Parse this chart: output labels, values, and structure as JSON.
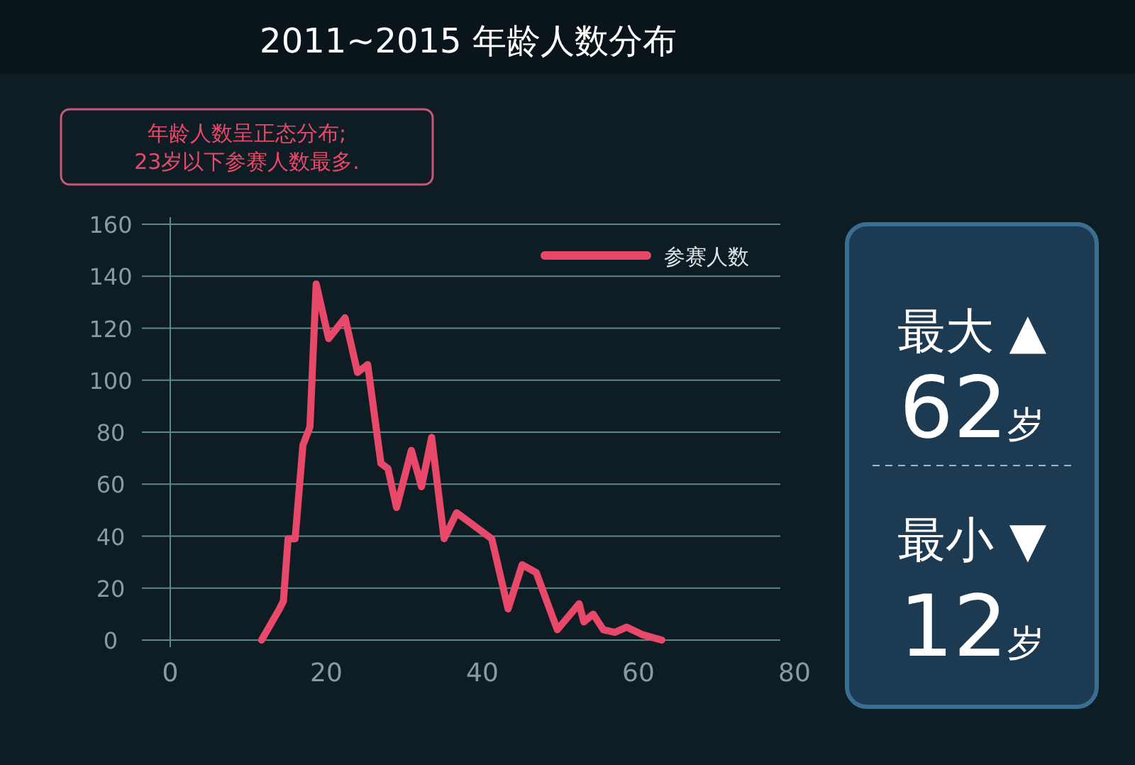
{
  "chart_data": [
    {
      "type": "line",
      "title": "2011~2015 年龄人数分布",
      "annotations": [
        "年龄人数呈正态分布;\n23岁以下参赛人数最多."
      ],
      "x": [
        11.7,
        14,
        14.5,
        15.1,
        16,
        17,
        17.9,
        18.7,
        20.3,
        22.4,
        24,
        25.3,
        27,
        27.9,
        29,
        30.9,
        32.2,
        33.5,
        35.1,
        36.7,
        41.2,
        43.3,
        45.1,
        46.9,
        49.6,
        52.4,
        53,
        54.2,
        55.5,
        57,
        58.5,
        60.6,
        63
      ],
      "series": [
        {
          "name": "参赛人数",
          "color": "#e8496a",
          "values": [
            0,
            12,
            15,
            39,
            39,
            75,
            82,
            137,
            116,
            124,
            103,
            106,
            68,
            66,
            51,
            73,
            59,
            78,
            39,
            49,
            39,
            12,
            29,
            26,
            4,
            14,
            7,
            10,
            4,
            3,
            5,
            2,
            0
          ]
        }
      ],
      "xlim": [
        0,
        80
      ],
      "xticks": [
        0,
        20,
        40,
        60,
        80
      ],
      "ylim": [
        0,
        160
      ],
      "yticks": [
        0,
        20,
        40,
        60,
        80,
        100,
        120,
        140,
        160
      ],
      "grid": "y",
      "legend": "top right"
    },
    {
      "type": "other",
      "annotations": [
        "最大 ▲",
        "62岁",
        "最小 ▼",
        "12岁"
      ]
    }
  ]
}
